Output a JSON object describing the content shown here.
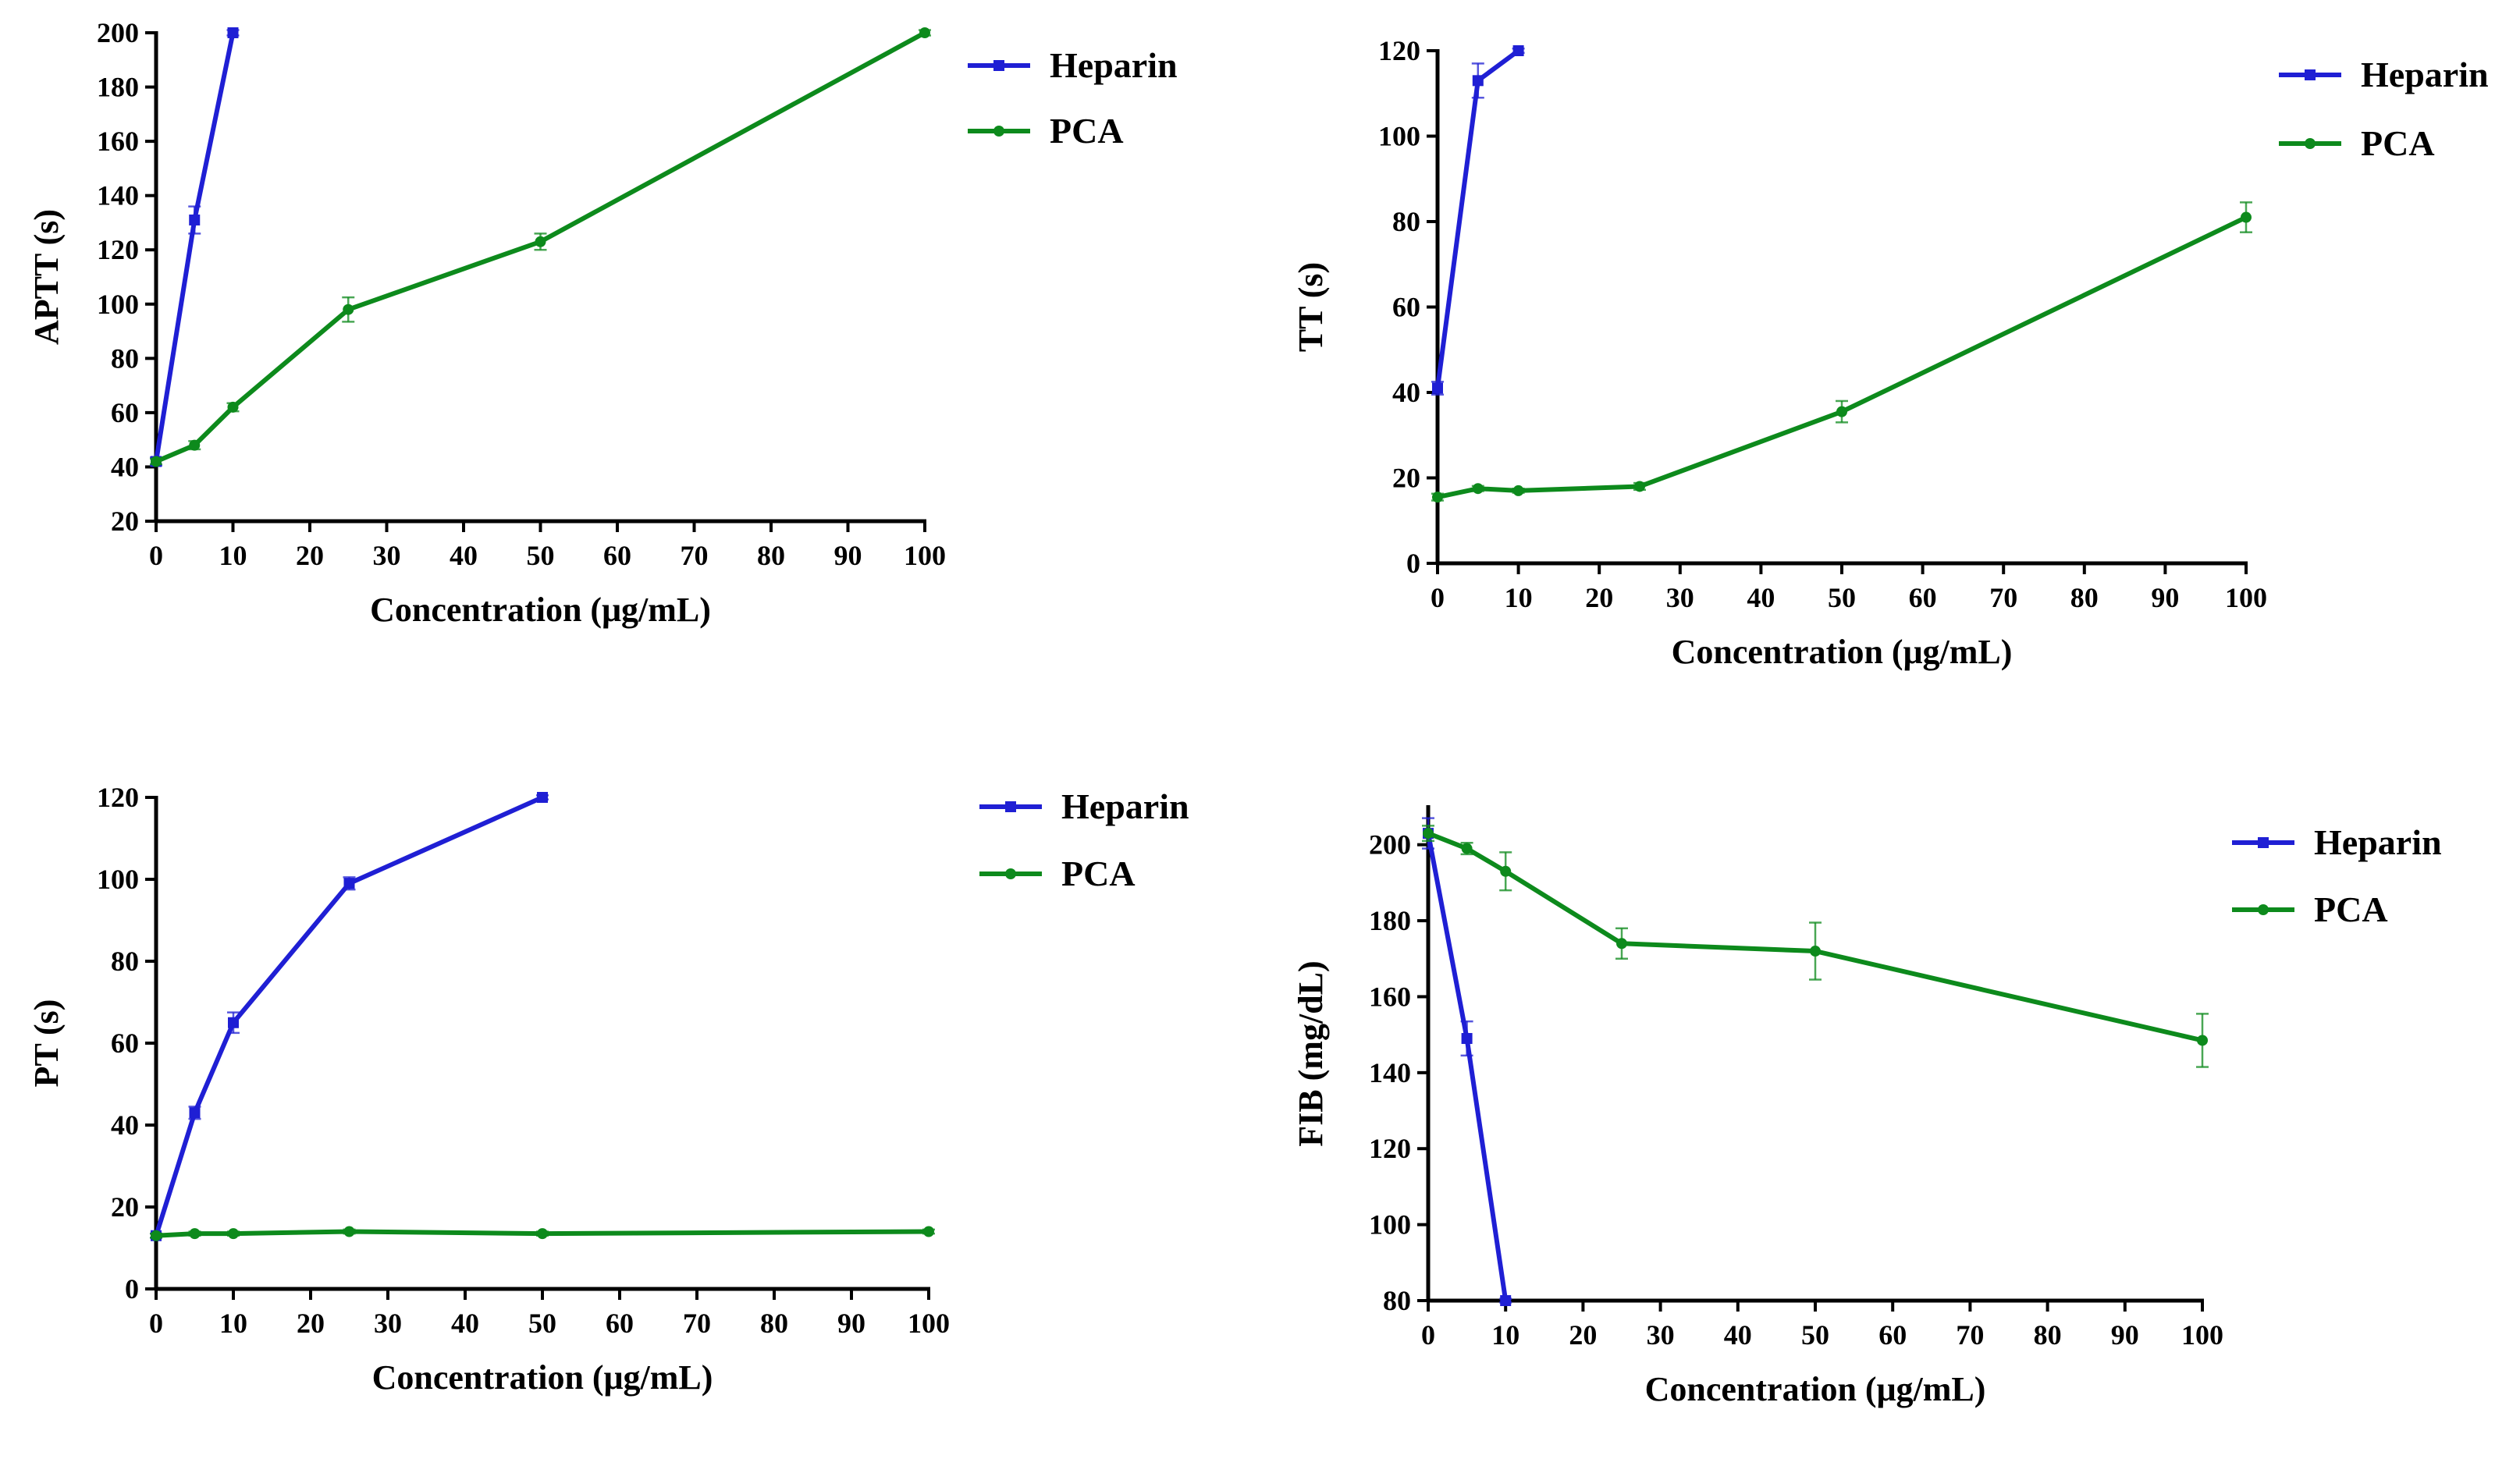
{
  "chart_data": [
    {
      "id": "aptt",
      "type": "line",
      "title": "",
      "xlabel": "Concentration  (μg/mL)",
      "ylabel": "APTT (s)",
      "xlim": [
        0,
        100
      ],
      "ylim": [
        20,
        200
      ],
      "xticks": [
        0,
        10,
        20,
        30,
        40,
        50,
        60,
        70,
        80,
        90,
        100
      ],
      "yticks": [
        20,
        40,
        60,
        80,
        100,
        120,
        140,
        160,
        180,
        200
      ],
      "legend": "top-right",
      "series": [
        {
          "name": "Heparin",
          "color": "#1f1fd4",
          "marker": "square",
          "x": [
            0,
            5,
            10
          ],
          "y": [
            42,
            131,
            200
          ],
          "err": [
            1.5,
            5,
            1
          ]
        },
        {
          "name": "PCA",
          "color": "#0d8a1c",
          "marker": "circle",
          "x": [
            0,
            5,
            10,
            25,
            50,
            100
          ],
          "y": [
            42,
            48,
            62,
            98,
            123,
            200
          ],
          "err": [
            1,
            1.5,
            1.5,
            4.5,
            3,
            1
          ]
        }
      ]
    },
    {
      "id": "tt",
      "type": "line",
      "title": "",
      "xlabel": "Concentration  (μg/mL)",
      "ylabel": "TT (s)",
      "xlim": [
        0,
        100
      ],
      "ylim": [
        0,
        120
      ],
      "xticks": [
        0,
        10,
        20,
        30,
        40,
        50,
        60,
        70,
        80,
        90,
        100
      ],
      "yticks": [
        0,
        20,
        40,
        60,
        80,
        100,
        120
      ],
      "legend": "top-right",
      "series": [
        {
          "name": "Heparin",
          "color": "#1f1fd4",
          "marker": "square",
          "x": [
            0,
            5,
            10
          ],
          "y": [
            41,
            113,
            120
          ],
          "err": [
            1.5,
            4,
            0.5
          ]
        },
        {
          "name": "PCA",
          "color": "#0d8a1c",
          "marker": "circle",
          "x": [
            0,
            5,
            10,
            25,
            50,
            100
          ],
          "y": [
            15.5,
            17.5,
            17,
            18,
            35.5,
            81
          ],
          "err": [
            0.8,
            0.6,
            0.5,
            0.8,
            2.5,
            3.5
          ]
        }
      ]
    },
    {
      "id": "pt",
      "type": "line",
      "title": "",
      "xlabel": "Concentration  (μg/mL)",
      "ylabel": "PT (s)",
      "xlim": [
        0,
        100
      ],
      "ylim": [
        0,
        120
      ],
      "xticks": [
        0,
        10,
        20,
        30,
        40,
        50,
        60,
        70,
        80,
        90,
        100
      ],
      "yticks": [
        0,
        20,
        40,
        60,
        80,
        100,
        120
      ],
      "legend": "top-right",
      "series": [
        {
          "name": "Heparin",
          "color": "#1f1fd4",
          "marker": "square",
          "x": [
            0,
            5,
            10,
            25,
            50
          ],
          "y": [
            13,
            43,
            65,
            99,
            120
          ],
          "err": [
            0.5,
            1.5,
            2.5,
            1.5,
            0.5
          ]
        },
        {
          "name": "PCA",
          "color": "#0d8a1c",
          "marker": "circle",
          "x": [
            0,
            5,
            10,
            25,
            50,
            100
          ],
          "y": [
            13,
            13.5,
            13.5,
            14,
            13.5,
            14
          ],
          "err": [
            0.5,
            0.5,
            0.5,
            0.5,
            0.5,
            0.5
          ]
        }
      ]
    },
    {
      "id": "fib",
      "type": "line",
      "title": "",
      "xlabel": "Concentration  (μg/mL)",
      "ylabel": "FIB (mg/dL)",
      "xlim": [
        0,
        100
      ],
      "ylim": [
        80,
        210
      ],
      "xticks": [
        0,
        10,
        20,
        30,
        40,
        50,
        60,
        70,
        80,
        90,
        100
      ],
      "yticks": [
        80,
        100,
        120,
        140,
        160,
        180,
        200
      ],
      "legend": "top-right",
      "series": [
        {
          "name": "Heparin",
          "color": "#1f1fd4",
          "marker": "square",
          "x": [
            0,
            5,
            10
          ],
          "y": [
            203,
            149,
            80
          ],
          "err": [
            4,
            4.5,
            0.5
          ]
        },
        {
          "name": "PCA",
          "color": "#0d8a1c",
          "marker": "circle",
          "x": [
            0,
            5,
            10,
            25,
            50,
            100
          ],
          "y": [
            203,
            199,
            193,
            174,
            172,
            148.5
          ],
          "err": [
            2,
            1.5,
            5,
            4,
            7.5,
            7
          ]
        }
      ]
    }
  ]
}
